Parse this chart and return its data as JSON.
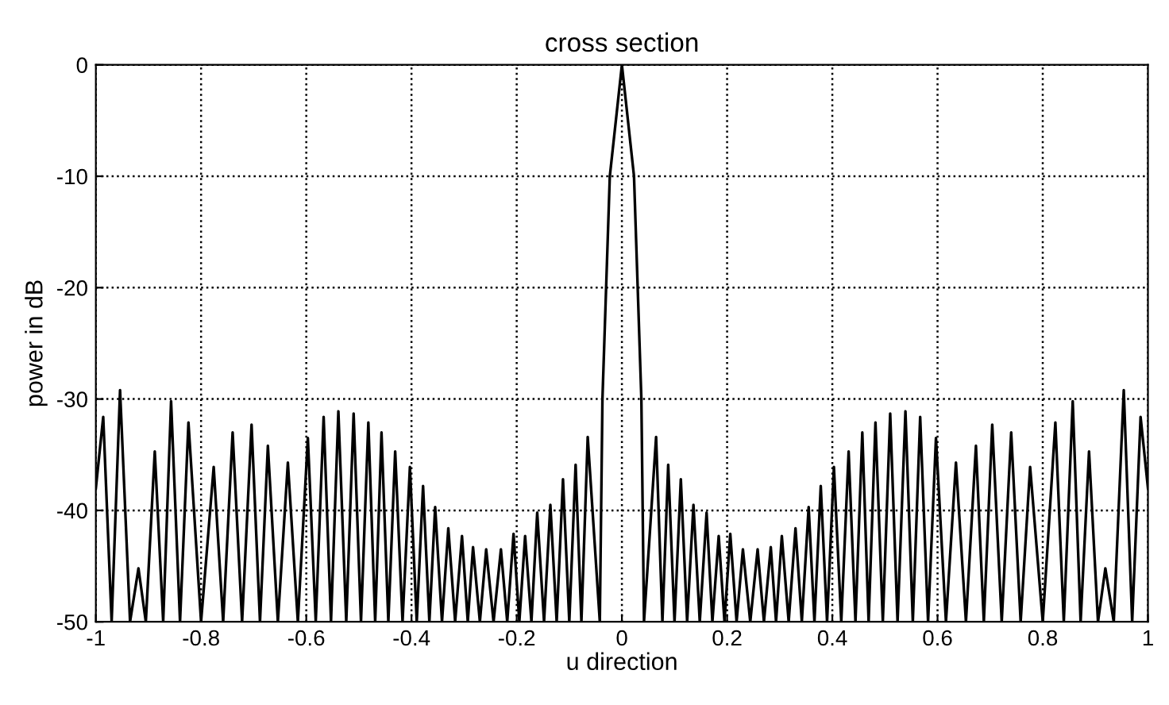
{
  "chart_data": {
    "type": "line",
    "title": "cross section",
    "xlabel": "u direction",
    "ylabel": "power in dB",
    "xlim": [
      -1,
      1
    ],
    "ylim": [
      -50,
      0
    ],
    "xticks": [
      -1,
      -0.8,
      -0.6,
      -0.4,
      -0.2,
      0,
      0.2,
      0.4,
      0.6,
      0.8,
      1
    ],
    "yticks": [
      -50,
      -40,
      -30,
      -20,
      -10,
      0
    ],
    "grid": true,
    "legend": false,
    "line_style": "solid",
    "series": [
      {
        "color": "#000000",
        "x": [
          -1.0,
          -0.986,
          -0.97,
          -0.954,
          -0.935,
          -0.919,
          -0.905,
          -0.888,
          -0.872,
          -0.857,
          -0.84,
          -0.824,
          -0.8,
          -0.776,
          -0.758,
          -0.74,
          -0.722,
          -0.704,
          -0.688,
          -0.673,
          -0.654,
          -0.635,
          -0.616,
          -0.597,
          -0.582,
          -0.567,
          -0.553,
          -0.539,
          -0.524,
          -0.51,
          -0.496,
          -0.482,
          -0.469,
          -0.457,
          -0.444,
          -0.431,
          -0.417,
          -0.403,
          -0.39,
          -0.378,
          -0.366,
          -0.355,
          -0.342,
          -0.33,
          -0.317,
          -0.304,
          -0.293,
          -0.283,
          -0.27,
          -0.258,
          -0.244,
          -0.23,
          -0.218,
          -0.206,
          -0.195,
          -0.184,
          -0.172,
          -0.161,
          -0.148,
          -0.136,
          -0.124,
          -0.112,
          -0.1,
          -0.088,
          -0.077,
          -0.065,
          -0.042,
          -0.037,
          -0.03,
          -0.023,
          0,
          0.023,
          0.03,
          0.037,
          0.042,
          0.065,
          0.077,
          0.088,
          0.1,
          0.112,
          0.124,
          0.136,
          0.148,
          0.161,
          0.172,
          0.184,
          0.195,
          0.206,
          0.218,
          0.23,
          0.244,
          0.258,
          0.27,
          0.283,
          0.293,
          0.304,
          0.317,
          0.33,
          0.342,
          0.355,
          0.366,
          0.378,
          0.39,
          0.403,
          0.417,
          0.431,
          0.444,
          0.457,
          0.469,
          0.482,
          0.496,
          0.51,
          0.524,
          0.539,
          0.553,
          0.567,
          0.582,
          0.597,
          0.616,
          0.635,
          0.654,
          0.673,
          0.688,
          0.704,
          0.722,
          0.74,
          0.758,
          0.776,
          0.8,
          0.824,
          0.84,
          0.857,
          0.872,
          0.888,
          0.905,
          0.919,
          0.935,
          0.954,
          0.97,
          0.986,
          1.0
        ],
        "values": [
          -38,
          -31.6,
          -50,
          -29.2,
          -50,
          -45.2,
          -50,
          -34.7,
          -50,
          -30.2,
          -50,
          -32.1,
          -50,
          -36.1,
          -50,
          -33.0,
          -50,
          -32.3,
          -50,
          -34.2,
          -50,
          -35.7,
          -50,
          -33.5,
          -50,
          -31.6,
          -50,
          -31.1,
          -50,
          -31.3,
          -50,
          -32.1,
          -50,
          -33.0,
          -50,
          -34.7,
          -50,
          -36.1,
          -50,
          -37.8,
          -50,
          -39.7,
          -50,
          -41.6,
          -50,
          -42.3,
          -50,
          -43.3,
          -50,
          -43.5,
          -50,
          -43.5,
          -50,
          -42.1,
          -50,
          -42.3,
          -50,
          -40.2,
          -50,
          -39.5,
          -50,
          -37.2,
          -50,
          -35.9,
          -50,
          -33.4,
          -50,
          -30,
          -20,
          -10,
          0,
          -10,
          -20,
          -30,
          -50,
          -33.4,
          -50,
          -35.9,
          -50,
          -37.2,
          -50,
          -39.5,
          -50,
          -40.2,
          -50,
          -42.3,
          -50,
          -42.1,
          -50,
          -43.5,
          -50,
          -43.5,
          -50,
          -43.3,
          -50,
          -42.3,
          -50,
          -41.6,
          -50,
          -39.7,
          -50,
          -37.8,
          -50,
          -36.1,
          -50,
          -34.7,
          -50,
          -33.0,
          -50,
          -32.1,
          -50,
          -31.3,
          -50,
          -31.1,
          -50,
          -31.6,
          -50,
          -33.5,
          -50,
          -35.7,
          -50,
          -34.2,
          -50,
          -32.3,
          -50,
          -33.0,
          -50,
          -36.1,
          -50,
          -32.1,
          -50,
          -30.2,
          -50,
          -34.7,
          -50,
          -45.2,
          -50,
          -29.2,
          -50,
          -31.6,
          -38
        ]
      }
    ]
  }
}
